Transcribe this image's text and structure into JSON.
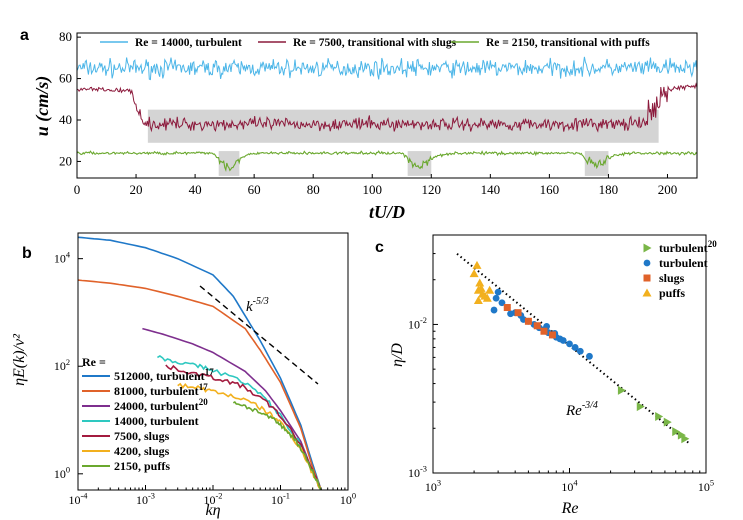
{
  "panels": {
    "a": "a",
    "b": "b",
    "c": "c"
  },
  "colors": {
    "re14000": "#4db6e8",
    "re7500": "#8c1a3c",
    "re2150": "#6aa82e",
    "grey": "#d4d4d4",
    "c_turb20": "#7ab648",
    "c_turb": "#1f78c8",
    "c_slugs": "#e0622a",
    "c_puffs": "#f2b01e",
    "b_512000": "#1f78c8",
    "b_81000": "#e0622a",
    "b_24000": "#7e2f8e",
    "b_14000": "#2ec8c0",
    "b_7500": "#a31b3f",
    "b_4200": "#f2b01e",
    "b_2150": "#6aa82e"
  },
  "chart_data": [
    {
      "id": "a",
      "type": "line",
      "xlabel": "tU/D",
      "ylabel": "u (cm/s)",
      "xlim": [
        0,
        210
      ],
      "ylim": [
        12,
        82
      ],
      "xticks": [
        0,
        20,
        40,
        60,
        80,
        100,
        120,
        140,
        160,
        180,
        200
      ],
      "yticks": [
        20,
        40,
        60,
        80
      ],
      "legend": "top",
      "series": [
        {
          "name": "Re = 14000, turbulent",
          "mean": 65,
          "noise": 3.5
        },
        {
          "name": "Re = 7500, transitional with slugs",
          "laminar_level": 55,
          "turbulent_level": 38,
          "slug_start": 23,
          "slug_end": 197
        },
        {
          "name": "Re = 2150, transitional with puffs",
          "laminar_level": 24,
          "puffs": [
            [
              48,
              55
            ],
            [
              112,
              120
            ],
            [
              172,
              180
            ]
          ]
        }
      ],
      "shaded": [
        [
          24,
          197,
          29,
          45
        ],
        [
          48,
          55,
          13,
          25
        ],
        [
          112,
          120,
          13,
          25
        ],
        [
          172,
          180,
          13,
          25
        ]
      ]
    },
    {
      "id": "b",
      "type": "line",
      "xlabel": "kη",
      "ylabel": "ηE(k)/ν²",
      "xscale": "log",
      "yscale": "log",
      "xlim": [
        0.0001,
        1
      ],
      "ylim": [
        0.5,
        30000
      ],
      "xticks": [
        0.0001,
        0.001,
        0.01,
        0.1,
        1
      ],
      "xticklabels": [
        [
          "10",
          "-4"
        ],
        [
          "10",
          "-3"
        ],
        [
          "10",
          "-2"
        ],
        [
          "10",
          "-1"
        ],
        [
          "10",
          "0"
        ]
      ],
      "yticks": [
        1,
        100,
        10000
      ],
      "yticklabels": [
        [
          "10",
          "0"
        ],
        [
          "10",
          "2"
        ],
        [
          "10",
          "4"
        ]
      ],
      "annotation": "k^-5/3",
      "legend_title": "Re =",
      "series": [
        {
          "name": "512000, turbulent",
          "sup": "17",
          "x": [
            0.0001,
            0.0003,
            0.001,
            0.003,
            0.01,
            0.02,
            0.05,
            0.1,
            0.2,
            0.3,
            0.4
          ],
          "y": [
            25000,
            22000,
            16000,
            10000,
            5000,
            2000,
            300,
            60,
            8,
            1.5,
            0.5
          ]
        },
        {
          "name": "81000, turbulent",
          "sup": "17",
          "x": [
            0.0001,
            0.0003,
            0.001,
            0.003,
            0.01,
            0.03,
            0.05,
            0.1,
            0.2,
            0.3,
            0.4
          ],
          "y": [
            4000,
            3500,
            2800,
            2000,
            1300,
            500,
            200,
            50,
            7,
            1.3,
            0.5
          ]
        },
        {
          "name": "24000, turbulent",
          "sup": "20",
          "x": [
            0.0009,
            0.002,
            0.005,
            0.01,
            0.03,
            0.06,
            0.1,
            0.2,
            0.3,
            0.4
          ],
          "y": [
            500,
            380,
            260,
            180,
            80,
            35,
            15,
            4,
            1.1,
            0.5
          ]
        },
        {
          "name": "14000, turbulent",
          "sup": "",
          "x": [
            0.0015,
            0.003,
            0.006,
            0.01,
            0.03,
            0.06,
            0.1,
            0.2,
            0.3,
            0.4
          ],
          "y": [
            150,
            120,
            100,
            85,
            50,
            25,
            12,
            3.5,
            1.1,
            0.5
          ]
        },
        {
          "name": "7500, slugs",
          "sup": "",
          "x": [
            0.002,
            0.004,
            0.008,
            0.015,
            0.03,
            0.06,
            0.1,
            0.2,
            0.3,
            0.4
          ],
          "y": [
            100,
            80,
            65,
            55,
            40,
            22,
            12,
            3.5,
            1.1,
            0.5
          ]
        },
        {
          "name": "4200, slugs",
          "sup": "",
          "x": [
            0.003,
            0.006,
            0.01,
            0.02,
            0.04,
            0.07,
            0.1,
            0.2,
            0.3,
            0.4
          ],
          "y": [
            45,
            40,
            34,
            28,
            20,
            13,
            9,
            3,
            1,
            0.5
          ]
        },
        {
          "name": "2150, puffs",
          "sup": "",
          "x": [
            0.02,
            0.03,
            0.05,
            0.08,
            0.1,
            0.15,
            0.2,
            0.3,
            0.4
          ],
          "y": [
            22,
            18,
            14,
            10,
            8,
            5,
            3,
            1.1,
            0.5
          ]
        }
      ]
    },
    {
      "id": "c",
      "type": "scatter",
      "xlabel": "Re",
      "ylabel": "η/D",
      "xscale": "log",
      "yscale": "log",
      "xlim": [
        1000,
        100000
      ],
      "ylim": [
        0.001,
        0.04
      ],
      "xticks": [
        1000,
        10000,
        100000
      ],
      "xticklabels": [
        [
          "10",
          "3"
        ],
        [
          "10",
          "4"
        ],
        [
          "10",
          "5"
        ]
      ],
      "yticks": [
        0.001,
        0.01
      ],
      "yticklabels": [
        [
          "10",
          "-3"
        ],
        [
          "10",
          "-2"
        ]
      ],
      "annotation": "Re^-3/4",
      "fit_line": {
        "x": [
          1500,
          75000
        ],
        "coef": 7.2,
        "exp": -0.75
      },
      "legend": "top-right",
      "series": [
        {
          "name": "turbulent",
          "sup": "20",
          "marker": "triangle-right",
          "x": [
            24000,
            33000,
            45000,
            52000,
            60000,
            66000,
            70000
          ],
          "y": [
            0.0036,
            0.0028,
            0.0024,
            0.0022,
            0.0019,
            0.0018,
            0.0017
          ]
        },
        {
          "name": "turbulent",
          "sup": "",
          "marker": "circle",
          "x": [
            2900,
            3200,
            3500,
            4000,
            4400,
            5000,
            5500,
            6000,
            6500,
            7000,
            7500,
            8000,
            8500,
            9000,
            10000,
            11000,
            12000,
            14000,
            2800,
            3000,
            3700,
            4600,
            6800,
            7800
          ],
          "y": [
            0.015,
            0.014,
            0.013,
            0.012,
            0.0115,
            0.0105,
            0.01,
            0.0095,
            0.0092,
            0.0088,
            0.0085,
            0.0082,
            0.008,
            0.0078,
            0.0074,
            0.007,
            0.0066,
            0.0061,
            0.0125,
            0.0165,
            0.0118,
            0.0108,
            0.0097,
            0.0087
          ]
        },
        {
          "name": "slugs",
          "sup": "",
          "marker": "square",
          "x": [
            3500,
            4200,
            5000,
            5800,
            6500,
            7500
          ],
          "y": [
            0.013,
            0.012,
            0.0105,
            0.0098,
            0.009,
            0.0085
          ]
        },
        {
          "name": "puffs",
          "sup": "",
          "marker": "triangle-up",
          "x": [
            2000,
            2100,
            2150,
            2200,
            2300,
            2400,
            2500,
            2600,
            2150,
            2250
          ],
          "y": [
            0.022,
            0.025,
            0.017,
            0.019,
            0.016,
            0.0155,
            0.015,
            0.017,
            0.0145,
            0.0175
          ]
        }
      ]
    }
  ]
}
